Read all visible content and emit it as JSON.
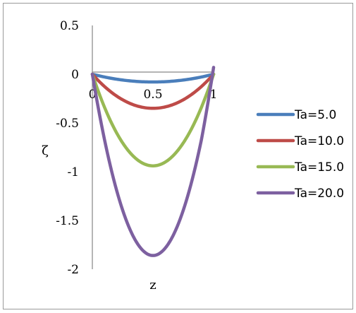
{
  "chart_data": {
    "type": "line",
    "title": "",
    "xlabel": "z",
    "ylabel": "ζ",
    "xlim": [
      0,
      1
    ],
    "ylim": [
      -2,
      0.5
    ],
    "x_ticks": [
      {
        "value": 0,
        "label": "0"
      },
      {
        "value": 0.5,
        "label": "0.5"
      },
      {
        "value": 1,
        "label": "1"
      }
    ],
    "y_ticks": [
      {
        "value": 0.5,
        "label": "0.5"
      },
      {
        "value": 0,
        "label": "0"
      },
      {
        "value": -0.5,
        "label": "-0.5"
      },
      {
        "value": -1,
        "label": "-1"
      },
      {
        "value": -1.5,
        "label": "-1.5"
      },
      {
        "value": -2,
        "label": "-2"
      }
    ],
    "grid": false,
    "legend_position": "right",
    "series": [
      {
        "name": "Ta=5.0",
        "color": "#4a7ebb",
        "min_value": -0.08,
        "end_value": 0.0
      },
      {
        "name": "Ta=10.0",
        "color": "#be4b48",
        "min_value": -0.35,
        "end_value": 0.0
      },
      {
        "name": "Ta=15.0",
        "color": "#98b954",
        "min_value": -0.94,
        "end_value": 0.0
      },
      {
        "name": "Ta=20.0",
        "color": "#7d60a0",
        "min_value": -1.86,
        "end_value": 0.07
      }
    ]
  }
}
